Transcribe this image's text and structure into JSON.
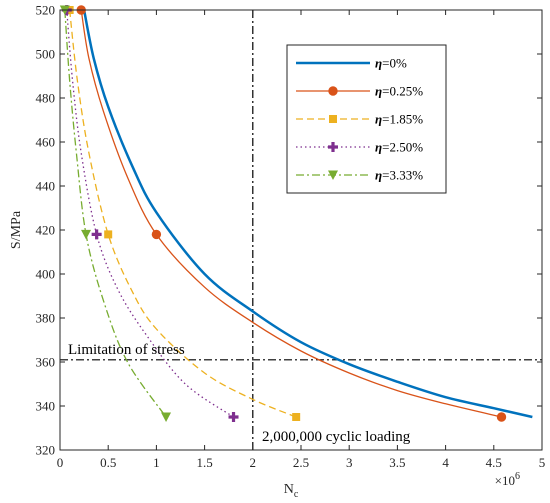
{
  "chart_data": {
    "type": "line",
    "title": "",
    "xlabel": "N",
    "xlabel_sub": "c",
    "ylabel": "S/MPa",
    "x_multiplier_base": "×10",
    "x_multiplier_exp": "6",
    "xlim": [
      0,
      5
    ],
    "ylim": [
      320,
      520
    ],
    "xticks": [
      0,
      0.5,
      1,
      1.5,
      2,
      2.5,
      3,
      3.5,
      4,
      4.5,
      5
    ],
    "xtick_labels": [
      "0",
      "0.5",
      "1",
      "1.5",
      "2",
      "2.5",
      "3",
      "3.5",
      "4",
      "4.5",
      "5"
    ],
    "yticks": [
      320,
      340,
      360,
      380,
      400,
      420,
      440,
      460,
      480,
      500,
      520
    ],
    "ytick_labels": [
      "320",
      "340",
      "360",
      "380",
      "400",
      "420",
      "440",
      "460",
      "480",
      "500",
      "520"
    ],
    "grid": false,
    "legend_position": "top-right",
    "series": [
      {
        "name": "η=0%",
        "color": "#0072BD",
        "dash": "solid",
        "marker": "none",
        "width": 2.5,
        "x": [
          0.25,
          0.35,
          0.5,
          0.75,
          1.0,
          1.5,
          2.0,
          2.5,
          3.0,
          3.5,
          4.0,
          4.5,
          4.9
        ],
        "y": [
          520,
          498,
          476,
          449,
          428,
          400,
          383,
          369,
          359,
          351,
          344,
          339,
          335
        ],
        "markers": []
      },
      {
        "name": "η=0.25%",
        "color": "#D95319",
        "dash": "solid",
        "marker": "circle",
        "width": 1.3,
        "x": [
          0.22,
          0.3,
          0.45,
          0.7,
          1.0,
          1.5,
          2.0,
          2.5,
          3.0,
          3.5,
          4.0,
          4.58
        ],
        "y": [
          520,
          498,
          474,
          444,
          418,
          394,
          378,
          365,
          355,
          347,
          341,
          335
        ],
        "markers": [
          [
            0.22,
            520
          ],
          [
            1.0,
            418
          ],
          [
            4.58,
            335
          ]
        ]
      },
      {
        "name": "η=1.85%",
        "color": "#EDB120",
        "dash": "dashed",
        "marker": "square",
        "width": 1.3,
        "x": [
          0.1,
          0.18,
          0.3,
          0.5,
          0.75,
          1.0,
          1.5,
          2.0,
          2.45
        ],
        "y": [
          520,
          488,
          455,
          418,
          392,
          375,
          355,
          343,
          335
        ],
        "markers": [
          [
            0.1,
            520
          ],
          [
            0.5,
            418
          ],
          [
            2.45,
            335
          ]
        ]
      },
      {
        "name": "η=2.50%",
        "color": "#7E2F8E",
        "dash": "dotted",
        "marker": "plus",
        "width": 1.3,
        "x": [
          0.07,
          0.13,
          0.22,
          0.38,
          0.6,
          0.9,
          1.3,
          1.8
        ],
        "y": [
          520,
          488,
          455,
          418,
          393,
          372,
          350,
          335
        ],
        "markers": [
          [
            0.07,
            520
          ],
          [
            0.38,
            418
          ],
          [
            1.8,
            335
          ]
        ]
      },
      {
        "name": "η=3.33%",
        "color": "#77AC30",
        "dash": "dashdot",
        "marker": "triangle-down",
        "width": 1.3,
        "x": [
          0.05,
          0.1,
          0.17,
          0.27,
          0.45,
          0.7,
          1.1
        ],
        "y": [
          520,
          488,
          455,
          418,
          388,
          360,
          335
        ],
        "markers": [
          [
            0.05,
            520
          ],
          [
            0.27,
            418
          ],
          [
            1.1,
            335
          ]
        ]
      }
    ],
    "reference_lines": [
      {
        "orientation": "horizontal",
        "value": 361,
        "label": "Limitation of stress"
      },
      {
        "orientation": "vertical",
        "value": 2,
        "label": "2,000,000 cyclic loading"
      }
    ]
  }
}
